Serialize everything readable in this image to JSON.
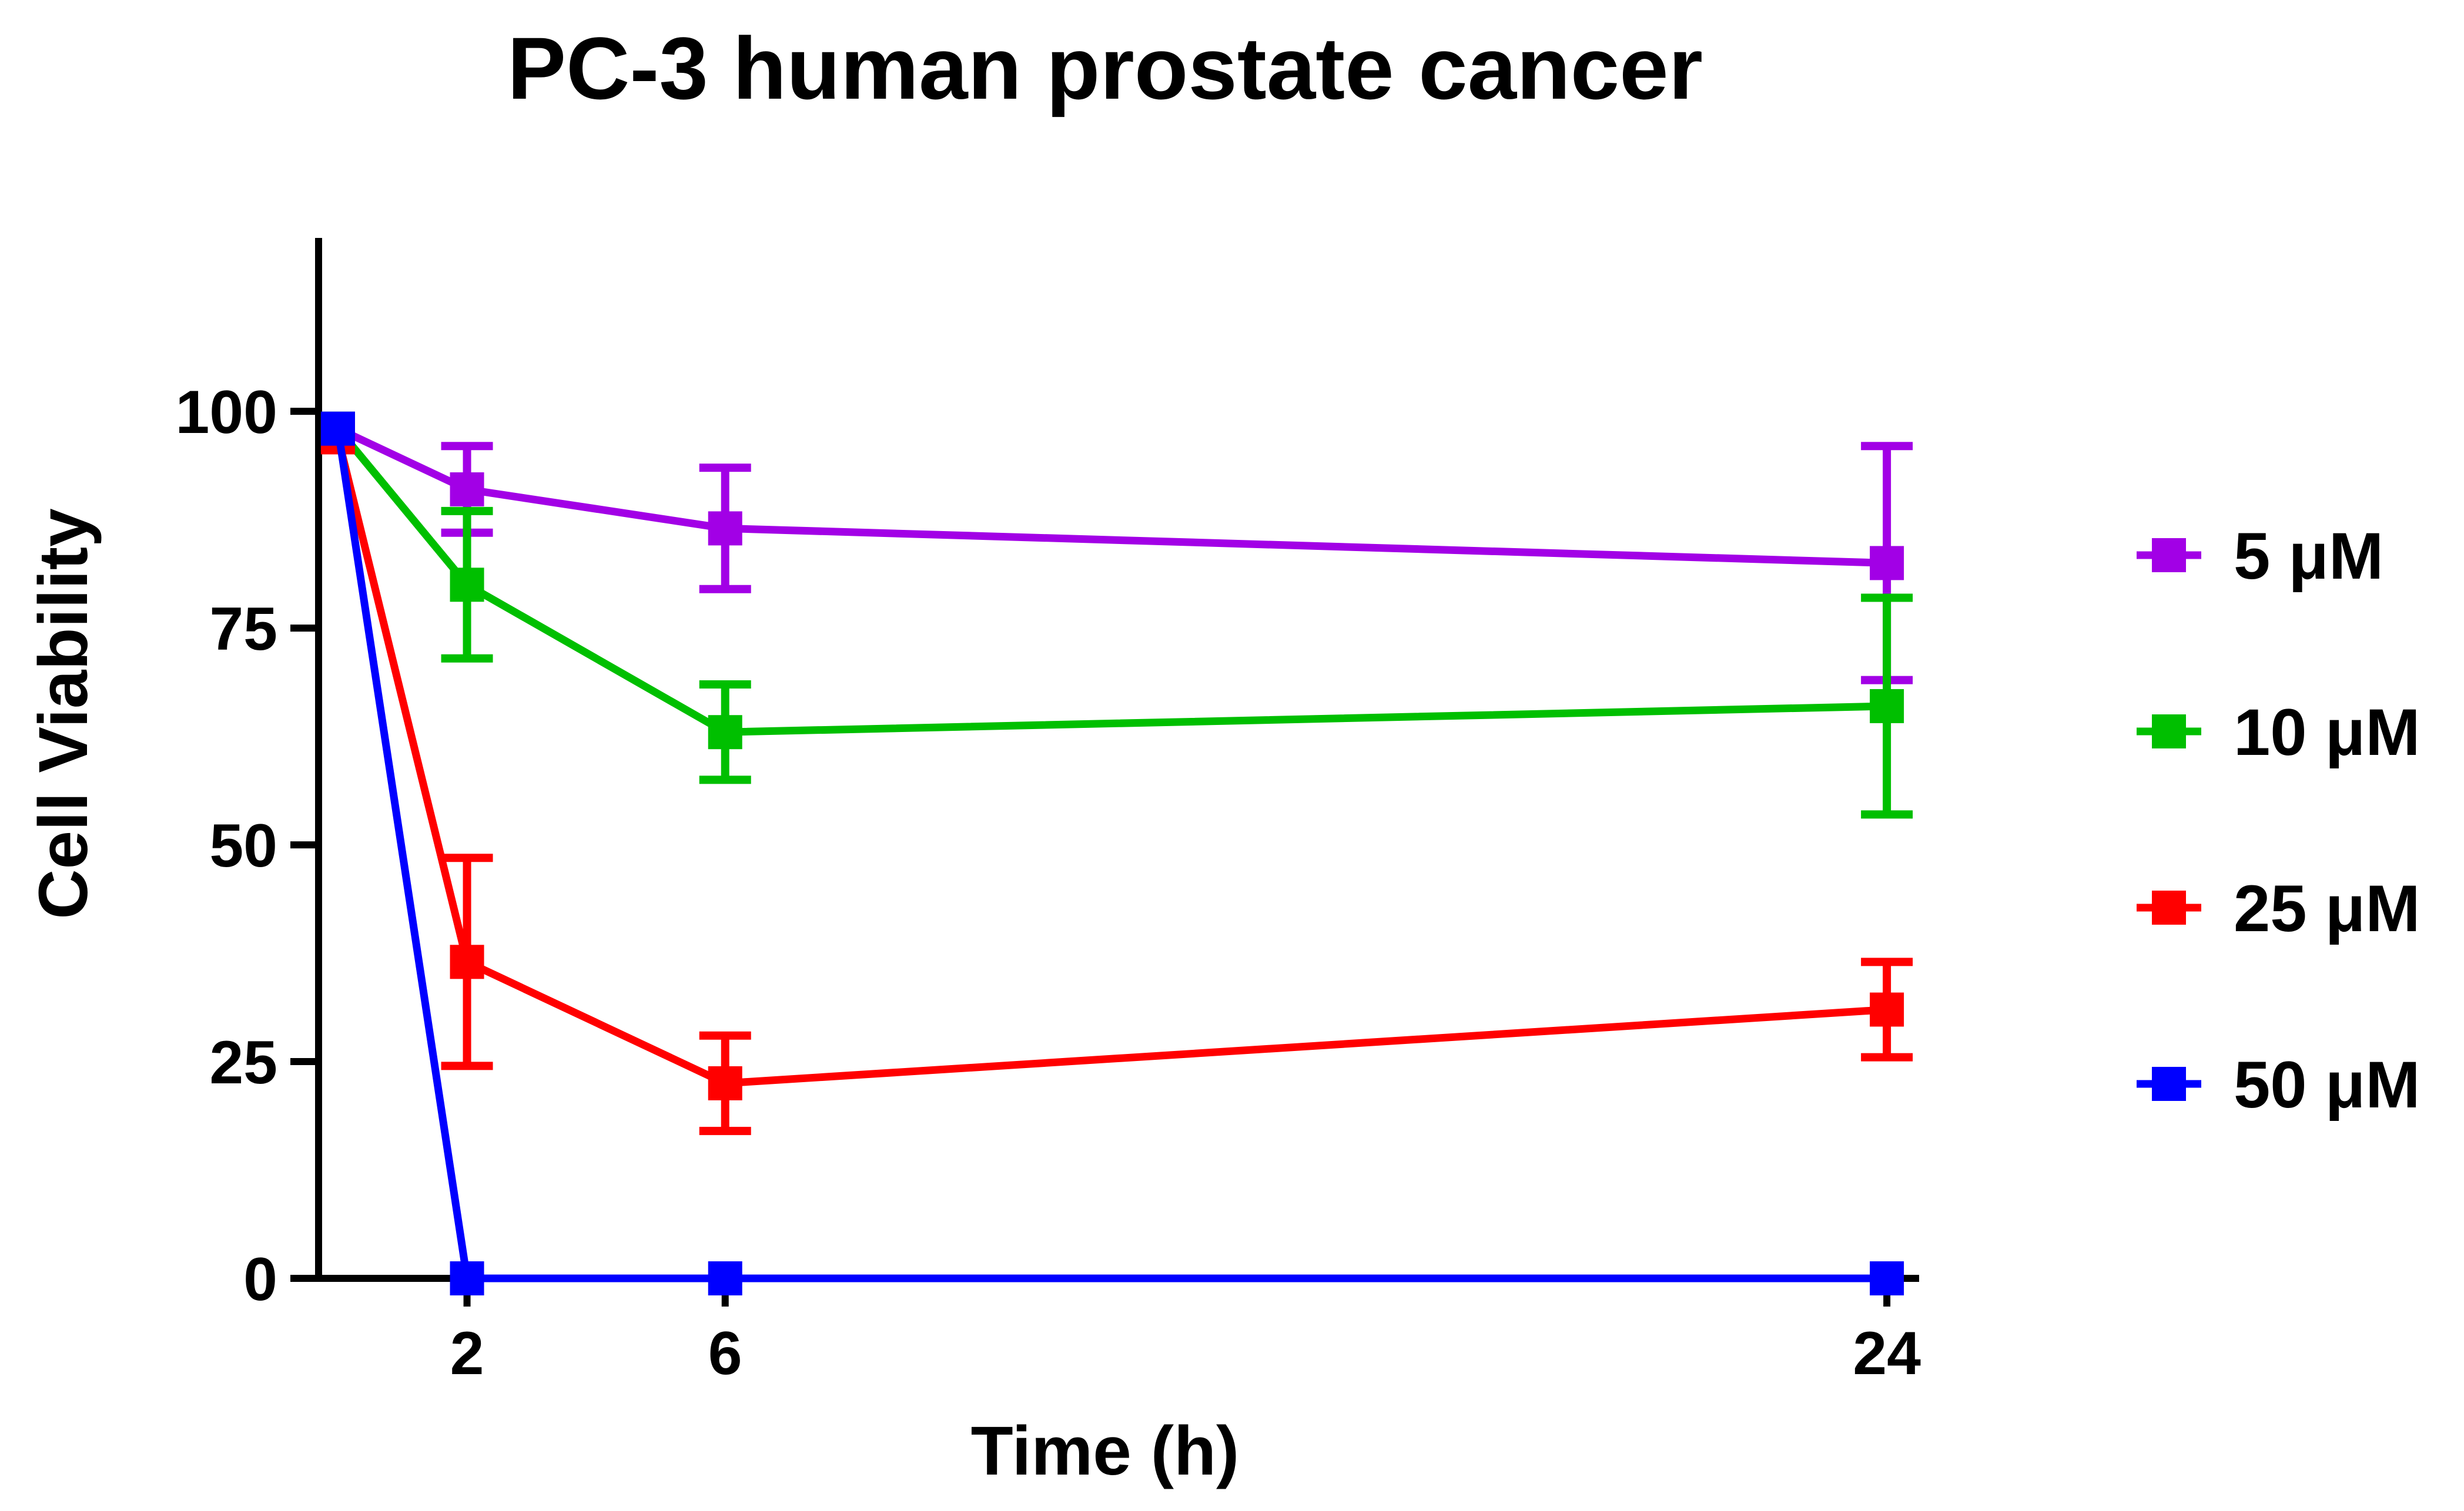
{
  "chart_data": {
    "type": "line",
    "title": "PC-3 human prostate cancer",
    "xlabel": "Time (h)",
    "ylabel": "Cell Viability",
    "xlim": [
      -0.3,
      24.5
    ],
    "ylim": [
      0,
      120
    ],
    "x_ticks": [
      2,
      6,
      24
    ],
    "x_tick_labels": [
      "2",
      "6",
      "24"
    ],
    "y_ticks": [
      0,
      25,
      50,
      75,
      100
    ],
    "y_tick_labels": [
      "0",
      "25",
      "50",
      "75",
      "100"
    ],
    "grid": false,
    "legend_position": "right",
    "series": [
      {
        "name": "5 μM",
        "color": "#a200e6",
        "marker": "square",
        "x": [
          0,
          2,
          6,
          24
        ],
        "y": [
          98,
          91,
          86.5,
          82.5
        ],
        "error": [
          0,
          5,
          7,
          13.5
        ]
      },
      {
        "name": "10 μM",
        "color": "#00bf00",
        "marker": "square",
        "x": [
          0,
          2,
          6,
          24
        ],
        "y": [
          98,
          80,
          63,
          66
        ],
        "error": [
          0,
          8.5,
          5.5,
          12.5
        ]
      },
      {
        "name": "25 μM",
        "color": "#ff0000",
        "marker": "square",
        "x": [
          0,
          2,
          6,
          24
        ],
        "y": [
          97,
          36.5,
          22.5,
          31
        ],
        "error": [
          0,
          12,
          5.5,
          5.5
        ]
      },
      {
        "name": "50 μM",
        "color": "#0000ff",
        "marker": "square",
        "x": [
          0,
          2,
          6,
          24
        ],
        "y": [
          98,
          0,
          0,
          0
        ],
        "error": [
          0,
          0,
          0,
          0
        ]
      }
    ]
  }
}
